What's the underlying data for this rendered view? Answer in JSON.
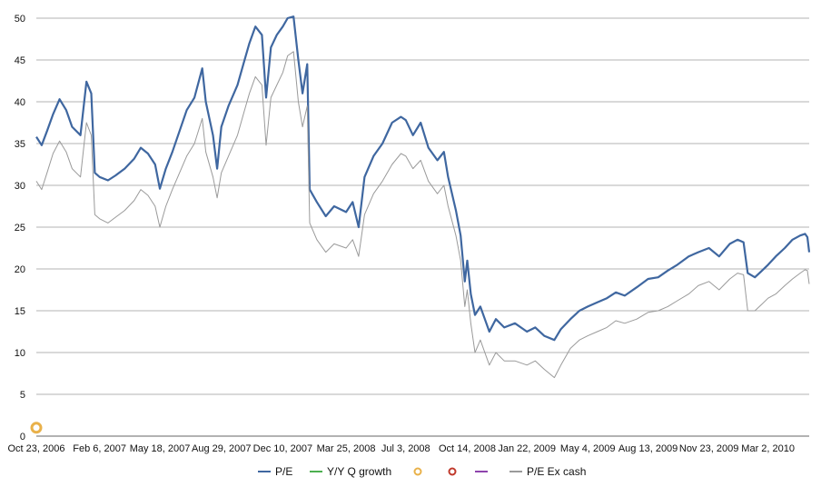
{
  "chart_data": {
    "type": "line",
    "ylim": [
      0,
      50
    ],
    "y_ticks": [
      "0",
      "5",
      "10",
      "15",
      "20",
      "25",
      "30",
      "35",
      "40",
      "45",
      "50"
    ],
    "x_range": [
      "2006-10-23",
      "2010-05-10"
    ],
    "x_tick_labels": [
      {
        "date": "2006-10-23",
        "label": "Oct 23, 2006"
      },
      {
        "date": "2007-02-06",
        "label": "Feb 6, 2007"
      },
      {
        "date": "2007-05-18",
        "label": "May 18, 2007"
      },
      {
        "date": "2007-08-29",
        "label": "Aug 29, 2007"
      },
      {
        "date": "2007-12-10",
        "label": "Dec 10, 2007"
      },
      {
        "date": "2008-03-25",
        "label": "Mar 25, 2008"
      },
      {
        "date": "2008-07-03",
        "label": "Jul 3, 2008"
      },
      {
        "date": "2008-10-14",
        "label": "Oct 14, 2008"
      },
      {
        "date": "2009-01-22",
        "label": "Jan 22, 2009"
      },
      {
        "date": "2009-05-04",
        "label": "May 4, 2009"
      },
      {
        "date": "2009-08-13",
        "label": "Aug 13, 2009"
      },
      {
        "date": "2009-11-23",
        "label": "Nov 23, 2009"
      },
      {
        "date": "2010-03-02",
        "label": "Mar 2, 2010"
      }
    ],
    "grid": "horizontal",
    "legend_placement": "bottom",
    "series": [
      {
        "name": "P/E",
        "color": "#3f67a0",
        "points": [
          [
            "2006-10-23",
            35.8
          ],
          [
            "2006-11-01",
            34.8
          ],
          [
            "2006-11-10",
            36.5
          ],
          [
            "2006-11-20",
            38.5
          ],
          [
            "2006-12-01",
            40.3
          ],
          [
            "2006-12-12",
            39.0
          ],
          [
            "2006-12-22",
            37.0
          ],
          [
            "2007-01-05",
            36.0
          ],
          [
            "2007-01-15",
            42.4
          ],
          [
            "2007-01-23",
            41.0
          ],
          [
            "2007-01-29",
            31.5
          ],
          [
            "2007-02-06",
            31.0
          ],
          [
            "2007-02-20",
            30.6
          ],
          [
            "2007-03-05",
            31.2
          ],
          [
            "2007-03-20",
            32.0
          ],
          [
            "2007-04-05",
            33.2
          ],
          [
            "2007-04-16",
            34.5
          ],
          [
            "2007-04-28",
            33.8
          ],
          [
            "2007-05-10",
            32.5
          ],
          [
            "2007-05-18",
            29.6
          ],
          [
            "2007-05-28",
            32.0
          ],
          [
            "2007-06-08",
            34.0
          ],
          [
            "2007-06-20",
            36.5
          ],
          [
            "2007-07-02",
            39.0
          ],
          [
            "2007-07-15",
            40.5
          ],
          [
            "2007-07-28",
            44.0
          ],
          [
            "2007-08-03",
            40.0
          ],
          [
            "2007-08-15",
            36.0
          ],
          [
            "2007-08-22",
            32.0
          ],
          [
            "2007-08-29",
            37.0
          ],
          [
            "2007-09-10",
            39.5
          ],
          [
            "2007-09-25",
            42.0
          ],
          [
            "2007-10-05",
            44.5
          ],
          [
            "2007-10-15",
            47.0
          ],
          [
            "2007-10-25",
            49.0
          ],
          [
            "2007-11-05",
            48.0
          ],
          [
            "2007-11-12",
            40.5
          ],
          [
            "2007-11-20",
            46.5
          ],
          [
            "2007-11-30",
            48.0
          ],
          [
            "2007-12-10",
            49.0
          ],
          [
            "2007-12-18",
            50.0
          ],
          [
            "2007-12-28",
            50.2
          ],
          [
            "2008-01-05",
            45.0
          ],
          [
            "2008-01-12",
            41.0
          ],
          [
            "2008-01-20",
            44.5
          ],
          [
            "2008-01-24",
            29.5
          ],
          [
            "2008-02-05",
            28.0
          ],
          [
            "2008-02-20",
            26.3
          ],
          [
            "2008-03-05",
            27.5
          ],
          [
            "2008-03-25",
            26.8
          ],
          [
            "2008-04-05",
            28.0
          ],
          [
            "2008-04-15",
            25.0
          ],
          [
            "2008-04-25",
            31.0
          ],
          [
            "2008-05-10",
            33.5
          ],
          [
            "2008-05-25",
            35.0
          ],
          [
            "2008-06-10",
            37.5
          ],
          [
            "2008-06-25",
            38.2
          ],
          [
            "2008-07-03",
            37.8
          ],
          [
            "2008-07-15",
            36.0
          ],
          [
            "2008-07-28",
            37.5
          ],
          [
            "2008-08-10",
            34.5
          ],
          [
            "2008-08-25",
            33.0
          ],
          [
            "2008-09-05",
            34.0
          ],
          [
            "2008-09-12",
            31.0
          ],
          [
            "2008-09-25",
            27.0
          ],
          [
            "2008-10-03",
            24.0
          ],
          [
            "2008-10-10",
            18.5
          ],
          [
            "2008-10-14",
            21.0
          ],
          [
            "2008-10-20",
            17.0
          ],
          [
            "2008-10-27",
            14.5
          ],
          [
            "2008-11-05",
            15.5
          ],
          [
            "2008-11-20",
            12.5
          ],
          [
            "2008-12-01",
            14.0
          ],
          [
            "2008-12-15",
            13.0
          ],
          [
            "2009-01-02",
            13.5
          ],
          [
            "2009-01-22",
            12.5
          ],
          [
            "2009-02-05",
            13.0
          ],
          [
            "2009-02-20",
            12.0
          ],
          [
            "2009-03-09",
            11.5
          ],
          [
            "2009-03-20",
            12.8
          ],
          [
            "2009-04-05",
            14.0
          ],
          [
            "2009-04-20",
            15.0
          ],
          [
            "2009-05-04",
            15.5
          ],
          [
            "2009-05-20",
            16.0
          ],
          [
            "2009-06-05",
            16.5
          ],
          [
            "2009-06-20",
            17.2
          ],
          [
            "2009-07-05",
            16.8
          ],
          [
            "2009-07-25",
            17.8
          ],
          [
            "2009-08-13",
            18.8
          ],
          [
            "2009-08-30",
            19.0
          ],
          [
            "2009-09-15",
            19.8
          ],
          [
            "2009-10-01",
            20.5
          ],
          [
            "2009-10-20",
            21.5
          ],
          [
            "2009-11-05",
            22.0
          ],
          [
            "2009-11-23",
            22.5
          ],
          [
            "2009-12-10",
            21.5
          ],
          [
            "2009-12-28",
            23.0
          ],
          [
            "2010-01-10",
            23.5
          ],
          [
            "2010-01-20",
            23.2
          ],
          [
            "2010-01-27",
            19.5
          ],
          [
            "2010-02-08",
            19.0
          ],
          [
            "2010-02-20",
            19.8
          ],
          [
            "2010-03-02",
            20.5
          ],
          [
            "2010-03-15",
            21.5
          ],
          [
            "2010-03-30",
            22.5
          ],
          [
            "2010-04-12",
            23.5
          ],
          [
            "2010-04-25",
            24.0
          ],
          [
            "2010-05-03",
            24.2
          ],
          [
            "2010-05-07",
            23.8
          ],
          [
            "2010-05-10",
            22.0
          ]
        ]
      },
      {
        "name": "Y/Y Q growth",
        "color": "#4caf50",
        "points": []
      },
      {
        "name": "",
        "color": "#e9b14a",
        "marker": "ring",
        "points": [
          [
            "2006-10-23",
            1.0
          ]
        ]
      },
      {
        "name": "",
        "color": "#c0392b",
        "marker": "ring",
        "points": []
      },
      {
        "name": "",
        "color": "#8e44ad",
        "points": []
      },
      {
        "name": "P/E Ex cash",
        "color": "#9a9a9a",
        "points": [
          [
            "2006-10-23",
            30.5
          ],
          [
            "2006-11-01",
            29.5
          ],
          [
            "2006-11-10",
            31.5
          ],
          [
            "2006-11-20",
            33.8
          ],
          [
            "2006-12-01",
            35.3
          ],
          [
            "2006-12-12",
            34.0
          ],
          [
            "2006-12-22",
            32.0
          ],
          [
            "2007-01-05",
            31.0
          ],
          [
            "2007-01-15",
            37.5
          ],
          [
            "2007-01-23",
            36.0
          ],
          [
            "2007-01-29",
            26.5
          ],
          [
            "2007-02-06",
            26.0
          ],
          [
            "2007-02-20",
            25.5
          ],
          [
            "2007-03-05",
            26.2
          ],
          [
            "2007-03-20",
            27.0
          ],
          [
            "2007-04-05",
            28.2
          ],
          [
            "2007-04-16",
            29.5
          ],
          [
            "2007-04-28",
            28.8
          ],
          [
            "2007-05-10",
            27.5
          ],
          [
            "2007-05-18",
            25.0
          ],
          [
            "2007-05-28",
            27.5
          ],
          [
            "2007-06-08",
            29.5
          ],
          [
            "2007-06-20",
            31.5
          ],
          [
            "2007-07-02",
            33.5
          ],
          [
            "2007-07-15",
            35.0
          ],
          [
            "2007-07-28",
            38.0
          ],
          [
            "2007-08-03",
            34.0
          ],
          [
            "2007-08-15",
            31.0
          ],
          [
            "2007-08-22",
            28.5
          ],
          [
            "2007-08-29",
            31.5
          ],
          [
            "2007-09-10",
            33.5
          ],
          [
            "2007-09-25",
            36.0
          ],
          [
            "2007-10-05",
            38.5
          ],
          [
            "2007-10-15",
            41.0
          ],
          [
            "2007-10-25",
            43.0
          ],
          [
            "2007-11-05",
            42.0
          ],
          [
            "2007-11-12",
            34.8
          ],
          [
            "2007-11-20",
            40.5
          ],
          [
            "2007-11-30",
            42.0
          ],
          [
            "2007-12-10",
            43.5
          ],
          [
            "2007-12-18",
            45.5
          ],
          [
            "2007-12-28",
            46.0
          ],
          [
            "2008-01-05",
            40.0
          ],
          [
            "2008-01-12",
            37.0
          ],
          [
            "2008-01-20",
            39.5
          ],
          [
            "2008-01-24",
            25.5
          ],
          [
            "2008-02-05",
            23.5
          ],
          [
            "2008-02-20",
            22.0
          ],
          [
            "2008-03-05",
            23.0
          ],
          [
            "2008-03-25",
            22.5
          ],
          [
            "2008-04-05",
            23.5
          ],
          [
            "2008-04-15",
            21.5
          ],
          [
            "2008-04-25",
            26.5
          ],
          [
            "2008-05-10",
            29.0
          ],
          [
            "2008-05-25",
            30.5
          ],
          [
            "2008-06-10",
            32.5
          ],
          [
            "2008-06-25",
            33.8
          ],
          [
            "2008-07-03",
            33.5
          ],
          [
            "2008-07-15",
            32.0
          ],
          [
            "2008-07-28",
            33.0
          ],
          [
            "2008-08-10",
            30.5
          ],
          [
            "2008-08-25",
            29.0
          ],
          [
            "2008-09-05",
            30.0
          ],
          [
            "2008-09-12",
            27.5
          ],
          [
            "2008-09-25",
            24.0
          ],
          [
            "2008-10-03",
            21.0
          ],
          [
            "2008-10-10",
            15.5
          ],
          [
            "2008-10-14",
            17.5
          ],
          [
            "2008-10-20",
            13.5
          ],
          [
            "2008-10-27",
            10.0
          ],
          [
            "2008-11-05",
            11.5
          ],
          [
            "2008-11-20",
            8.5
          ],
          [
            "2008-12-01",
            10.0
          ],
          [
            "2008-12-15",
            9.0
          ],
          [
            "2009-01-02",
            9.0
          ],
          [
            "2009-01-22",
            8.5
          ],
          [
            "2009-02-05",
            9.0
          ],
          [
            "2009-02-20",
            8.0
          ],
          [
            "2009-03-09",
            7.0
          ],
          [
            "2009-03-20",
            8.5
          ],
          [
            "2009-04-05",
            10.5
          ],
          [
            "2009-04-20",
            11.5
          ],
          [
            "2009-05-04",
            12.0
          ],
          [
            "2009-05-20",
            12.5
          ],
          [
            "2009-06-05",
            13.0
          ],
          [
            "2009-06-20",
            13.8
          ],
          [
            "2009-07-05",
            13.5
          ],
          [
            "2009-07-25",
            14.0
          ],
          [
            "2009-08-13",
            14.8
          ],
          [
            "2009-08-30",
            15.0
          ],
          [
            "2009-09-15",
            15.5
          ],
          [
            "2009-10-01",
            16.2
          ],
          [
            "2009-10-20",
            17.0
          ],
          [
            "2009-11-05",
            18.0
          ],
          [
            "2009-11-23",
            18.5
          ],
          [
            "2009-12-10",
            17.5
          ],
          [
            "2009-12-28",
            18.8
          ],
          [
            "2010-01-10",
            19.5
          ],
          [
            "2010-01-20",
            19.3
          ],
          [
            "2010-01-27",
            15.0
          ],
          [
            "2010-02-08",
            15.0
          ],
          [
            "2010-02-20",
            15.8
          ],
          [
            "2010-03-02",
            16.5
          ],
          [
            "2010-03-15",
            17.0
          ],
          [
            "2010-03-30",
            18.0
          ],
          [
            "2010-04-12",
            18.8
          ],
          [
            "2010-04-25",
            19.5
          ],
          [
            "2010-05-03",
            19.9
          ],
          [
            "2010-05-07",
            19.8
          ],
          [
            "2010-05-10",
            18.2
          ]
        ]
      }
    ]
  }
}
